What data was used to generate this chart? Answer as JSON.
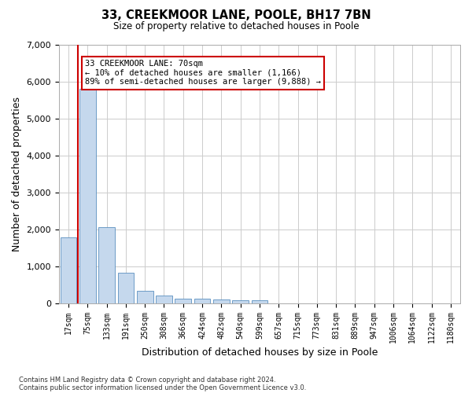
{
  "title": "33, CREEKMOOR LANE, POOLE, BH17 7BN",
  "subtitle": "Size of property relative to detached houses in Poole",
  "xlabel": "Distribution of detached houses by size in Poole",
  "ylabel": "Number of detached properties",
  "categories": [
    "17sqm",
    "75sqm",
    "133sqm",
    "191sqm",
    "250sqm",
    "308sqm",
    "366sqm",
    "424sqm",
    "482sqm",
    "540sqm",
    "599sqm",
    "657sqm",
    "715sqm",
    "773sqm",
    "831sqm",
    "889sqm",
    "947sqm",
    "1006sqm",
    "1064sqm",
    "1122sqm",
    "1180sqm"
  ],
  "values": [
    1780,
    5800,
    2060,
    820,
    340,
    195,
    120,
    110,
    100,
    75,
    75,
    0,
    0,
    0,
    0,
    0,
    0,
    0,
    0,
    0,
    0
  ],
  "bar_color": "#c5d8ed",
  "bar_edge_color": "#5a8fc0",
  "vline_color": "#cc0000",
  "annotation_title": "33 CREEKMOOR LANE: 70sqm",
  "annotation_line1": "← 10% of detached houses are smaller (1,166)",
  "annotation_line2": "89% of semi-detached houses are larger (9,888) →",
  "annotation_box_facecolor": "#ffffff",
  "annotation_box_edgecolor": "#cc0000",
  "background_color": "#ffffff",
  "plot_bg_color": "#ffffff",
  "grid_color": "#cccccc",
  "ylim": [
    0,
    7000
  ],
  "yticks": [
    0,
    1000,
    2000,
    3000,
    4000,
    5000,
    6000,
    7000
  ],
  "footnote1": "Contains HM Land Registry data © Crown copyright and database right 2024.",
  "footnote2": "Contains public sector information licensed under the Open Government Licence v3.0."
}
